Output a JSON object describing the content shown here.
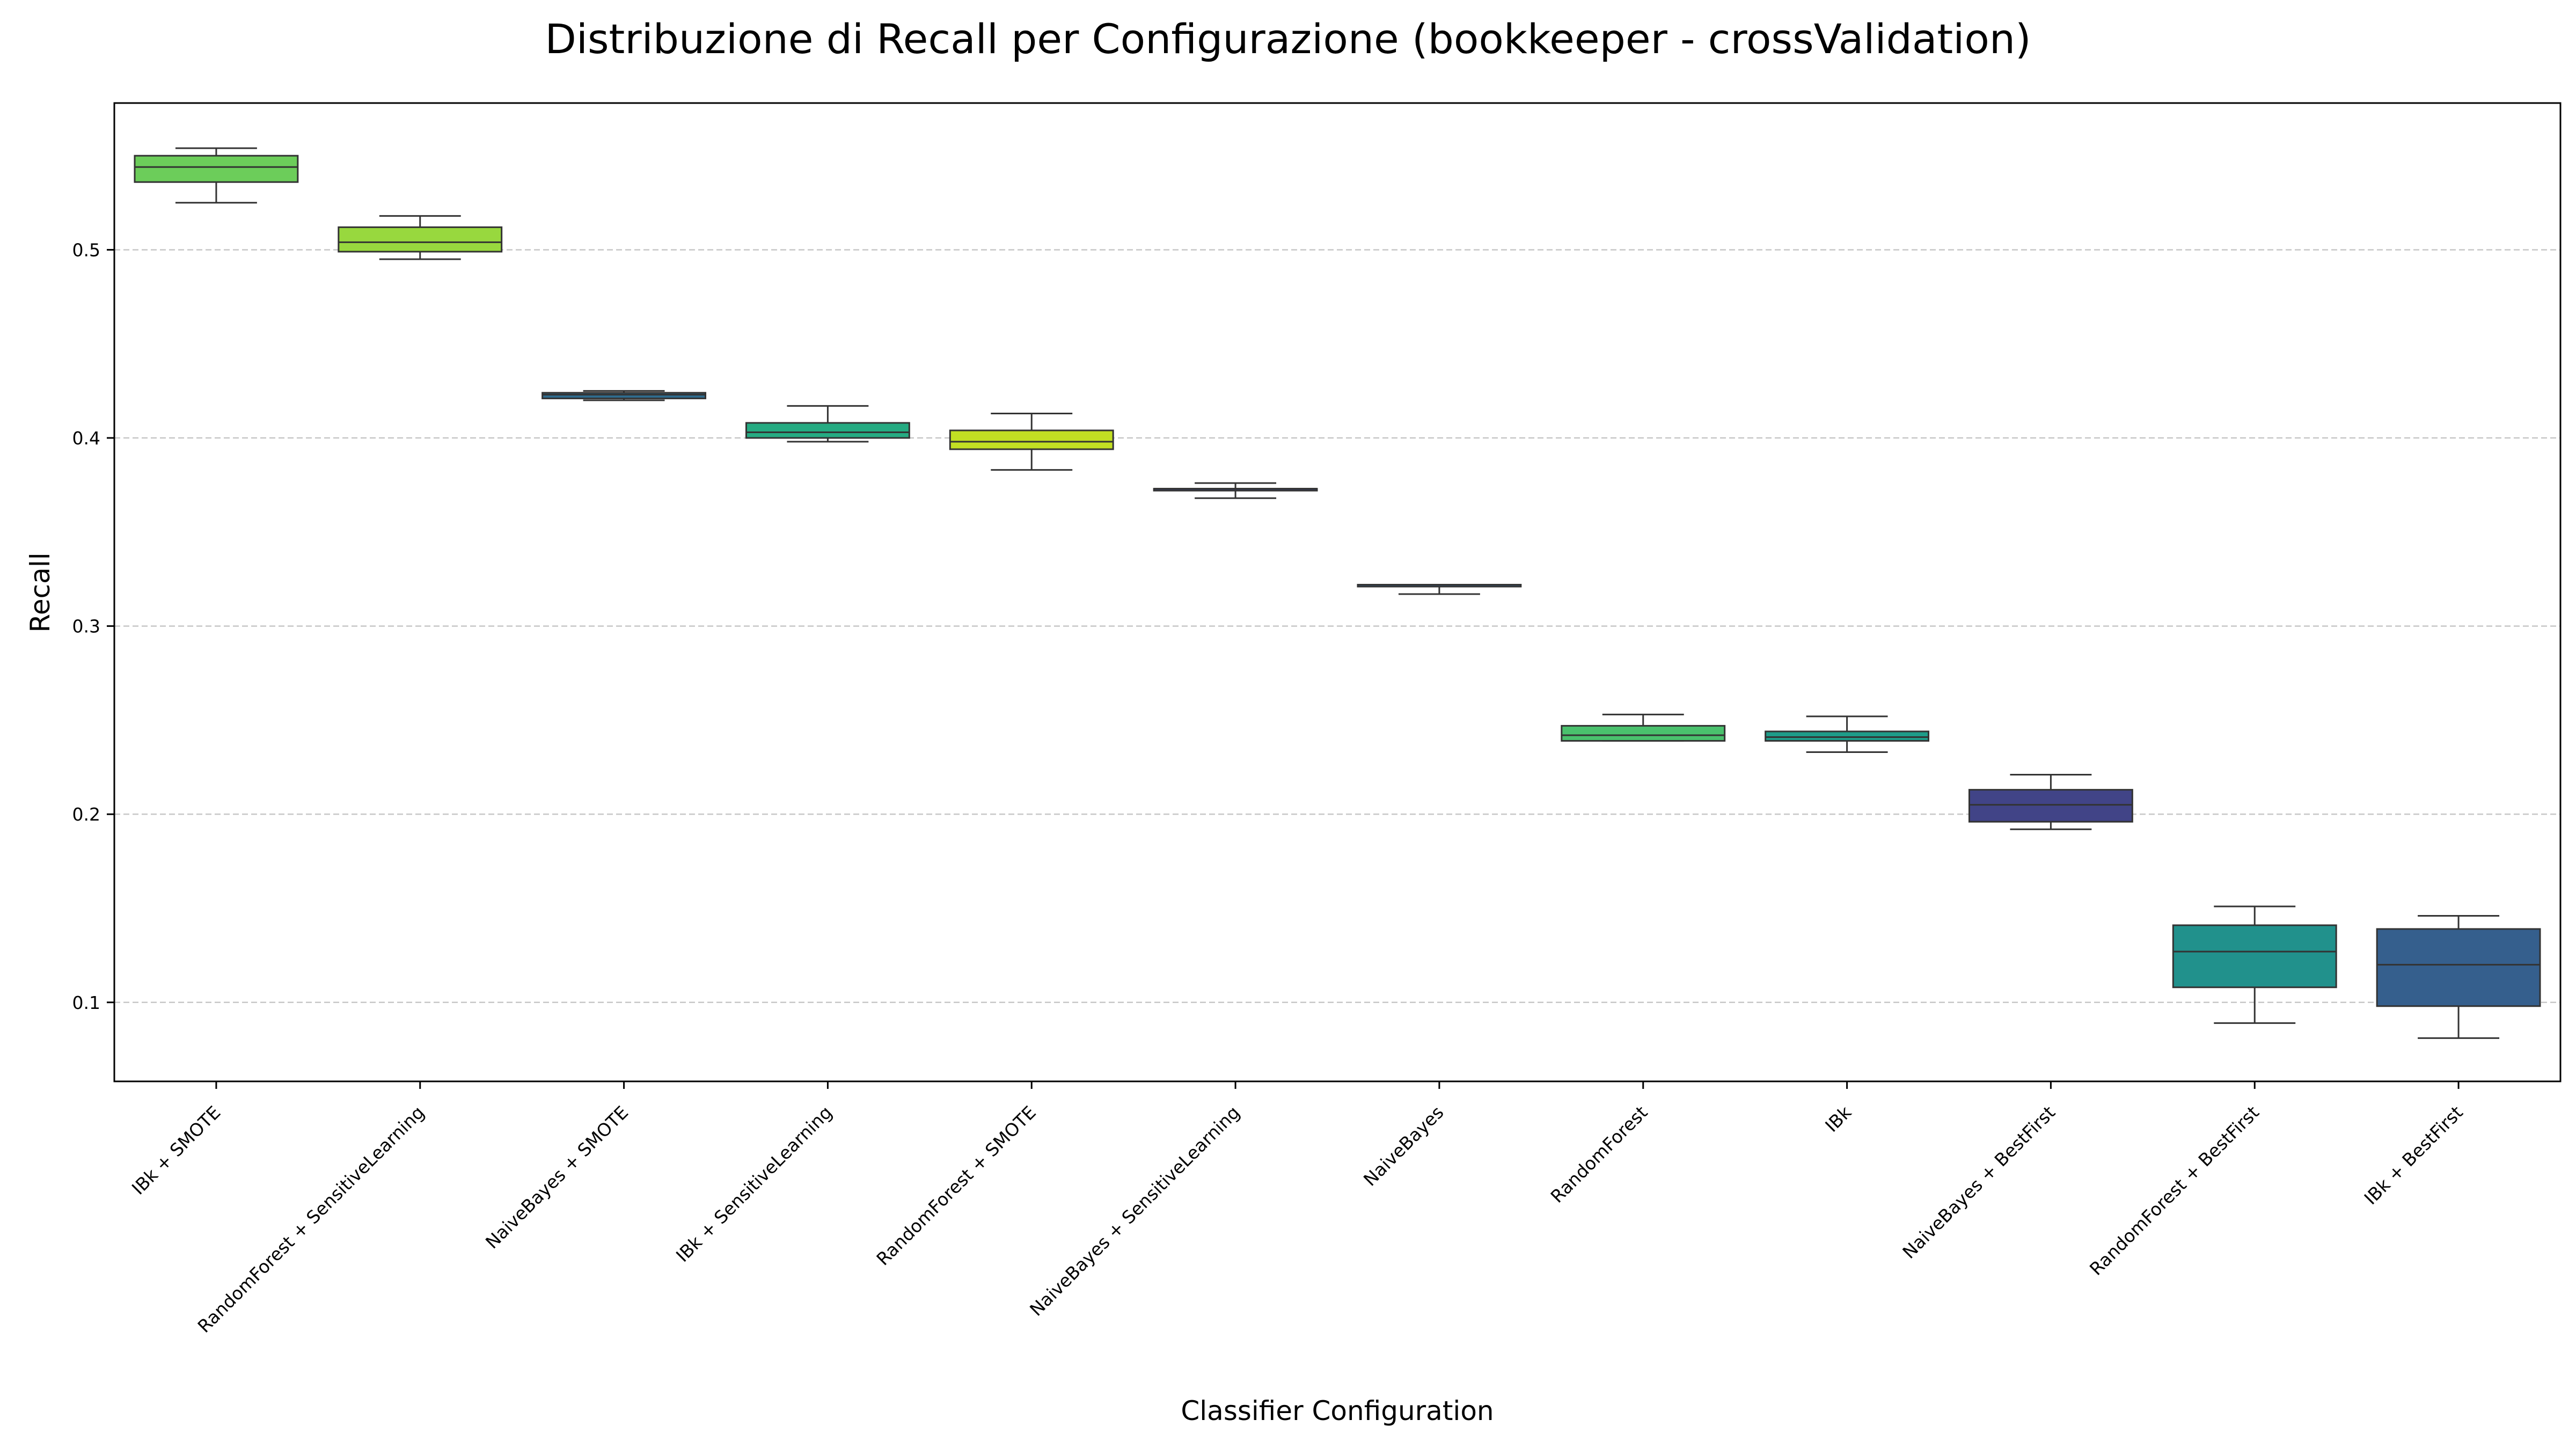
{
  "chart_data": {
    "type": "box",
    "title": "Distribuzione di Recall per Configurazione (bookkeeper - crossValidation)",
    "xlabel": "Classifier Configuration",
    "ylabel": "Recall",
    "ylim": [
      0.058,
      0.578
    ],
    "yticks": [
      "0.1",
      "0.2",
      "0.3",
      "0.4",
      "0.5"
    ],
    "grid": "y-dashed",
    "categories": [
      "IBk + SMOTE",
      "RandomForest + SensitiveLearning",
      "NaiveBayes + SMOTE",
      "IBk + SensitiveLearning",
      "RandomForest + SMOTE",
      "NaiveBayes + SensitiveLearning",
      "NaiveBayes",
      "RandomForest",
      "IBk",
      "NaiveBayes + BestFirst",
      "RandomForest + BestFirst",
      "IBk + BestFirst"
    ],
    "boxes": [
      {
        "min": 0.525,
        "q1": 0.536,
        "median": 0.544,
        "q3": 0.55,
        "max": 0.554,
        "color": "#6ccd5a"
      },
      {
        "min": 0.495,
        "q1": 0.499,
        "median": 0.504,
        "q3": 0.512,
        "max": 0.518,
        "color": "#98d83e"
      },
      {
        "min": 0.42,
        "q1": 0.421,
        "median": 0.423,
        "q3": 0.424,
        "max": 0.425,
        "color": "#2f6c8e"
      },
      {
        "min": 0.398,
        "q1": 0.4,
        "median": 0.403,
        "q3": 0.408,
        "max": 0.417,
        "color": "#25ab82"
      },
      {
        "min": 0.383,
        "q1": 0.394,
        "median": 0.398,
        "q3": 0.404,
        "max": 0.413,
        "color": "#c2df23"
      },
      {
        "min": 0.368,
        "q1": 0.372,
        "median": 0.373,
        "q3": 0.373,
        "max": 0.376,
        "color": "#3e4989"
      },
      {
        "min": 0.317,
        "q1": 0.321,
        "median": 0.321,
        "q3": 0.322,
        "max": 0.322,
        "color": "#34608d"
      },
      {
        "min": 0.239,
        "q1": 0.239,
        "median": 0.242,
        "q3": 0.247,
        "max": 0.253,
        "color": "#4ac16d"
      },
      {
        "min": 0.233,
        "q1": 0.239,
        "median": 0.241,
        "q3": 0.244,
        "max": 0.252,
        "color": "#1e9c89"
      },
      {
        "min": 0.192,
        "q1": 0.196,
        "median": 0.205,
        "q3": 0.213,
        "max": 0.221,
        "color": "#414487"
      },
      {
        "min": 0.089,
        "q1": 0.108,
        "median": 0.127,
        "q3": 0.141,
        "max": 0.151,
        "color": "#21918c"
      },
      {
        "min": 0.081,
        "q1": 0.098,
        "median": 0.12,
        "q3": 0.139,
        "max": 0.146,
        "color": "#355f8d"
      }
    ]
  }
}
